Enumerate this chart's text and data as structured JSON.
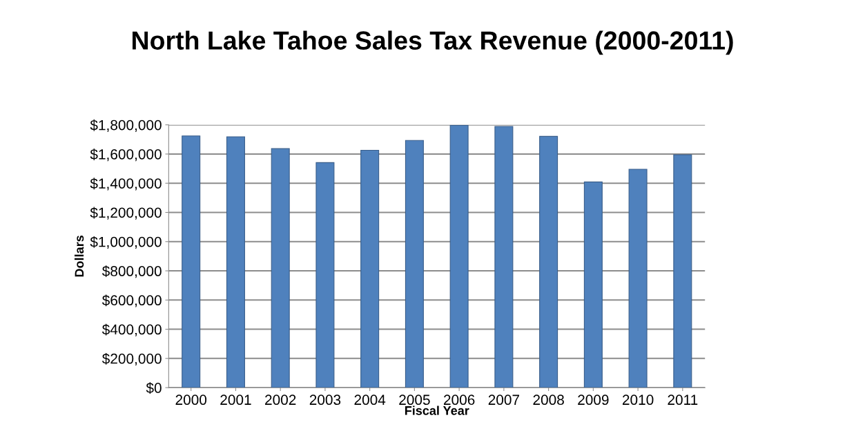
{
  "chart_data": {
    "type": "bar",
    "title": "North Lake Tahoe Sales Tax Revenue (2000-2011)",
    "xlabel": "Fiscal Year",
    "ylabel": "Dollars",
    "categories": [
      "2000",
      "2001",
      "2002",
      "2003",
      "2004",
      "2005",
      "2006",
      "2007",
      "2008",
      "2009",
      "2010",
      "2011"
    ],
    "values": [
      1724000,
      1718000,
      1637000,
      1541000,
      1626000,
      1693000,
      1797000,
      1789000,
      1721000,
      1409000,
      1496000,
      1595000
    ],
    "color": "#4f81bd",
    "ylim": [
      0,
      1800000
    ],
    "yticks": [
      {
        "value": 0,
        "label": "$0"
      },
      {
        "value": 200000,
        "label": "$200,000"
      },
      {
        "value": 400000,
        "label": "$400,000"
      },
      {
        "value": 600000,
        "label": "$600,000"
      },
      {
        "value": 800000,
        "label": "$800,000"
      },
      {
        "value": 1000000,
        "label": "$1,000,000"
      },
      {
        "value": 1200000,
        "label": "$1,200,000"
      },
      {
        "value": 1400000,
        "label": "$1,400,000"
      },
      {
        "value": 1600000,
        "label": "$1,600,000"
      },
      {
        "value": 1800000,
        "label": "$1,800,000"
      }
    ],
    "grid": "y"
  }
}
